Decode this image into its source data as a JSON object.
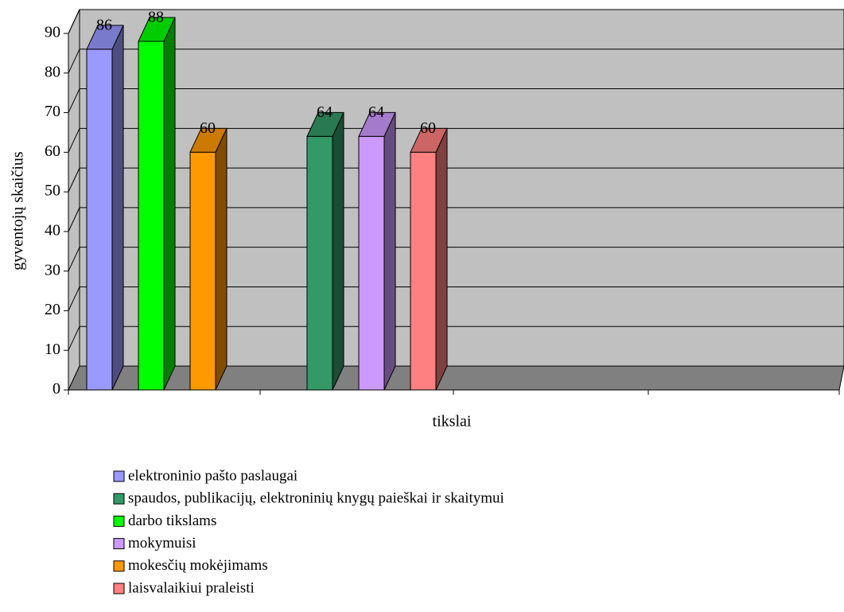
{
  "chart_data": {
    "type": "bar3d",
    "y_label": "gyventojų skaičius",
    "x_label": "tikslai",
    "ylim": [
      0,
      90
    ],
    "yticks": [
      0,
      10,
      20,
      30,
      40,
      50,
      60,
      70,
      80,
      90
    ],
    "grid": true,
    "legend": "bottom",
    "series": [
      {
        "name": "elektroninio pašto paslaugai",
        "color": "#9999ff",
        "values": [
          86
        ]
      },
      {
        "name": "spaudos, publikacijų, elektroninių knygų paieškai ir skaitymui",
        "color": "#339966",
        "values": [
          64
        ]
      },
      {
        "name": "darbo tikslams",
        "color": "#00ff00",
        "values": [
          88
        ]
      },
      {
        "name": "mokymuisi",
        "color": "#cc99ff",
        "values": [
          64
        ]
      },
      {
        "name": "mokesčių mokėjimams",
        "color": "#ff9900",
        "values": [
          60
        ]
      },
      {
        "name": "laisvalaikiui praleisti",
        "color": "#ff8080",
        "values": [
          60
        ]
      }
    ]
  }
}
